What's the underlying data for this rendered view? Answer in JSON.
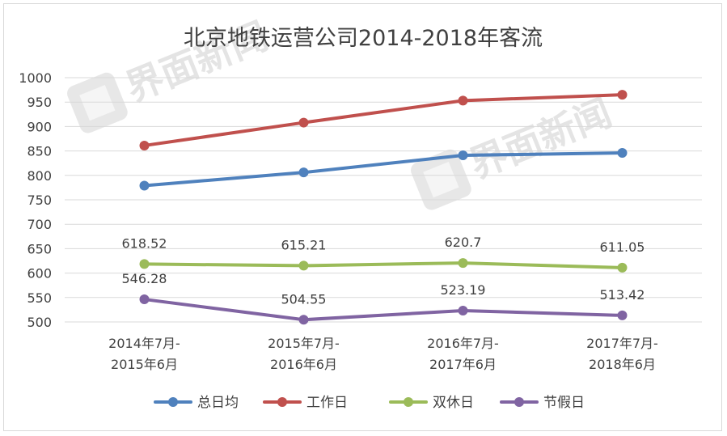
{
  "chart_data": {
    "type": "line",
    "title": "北京地铁运营公司2014-2018年客流",
    "categories": [
      [
        "2014年7月-",
        "2015年6月"
      ],
      [
        "2015年7月-",
        "2016年6月"
      ],
      [
        "2016年7月-",
        "2017年6月"
      ],
      [
        "2017年7月-",
        "2018年6月"
      ]
    ],
    "ylim": [
      500,
      1000
    ],
    "yticks": [
      1000,
      950,
      900,
      850,
      800,
      750,
      700,
      650,
      600,
      550,
      500
    ],
    "grid": true,
    "legend_position": "bottom",
    "series": [
      {
        "name": "总日均",
        "color": "#4f81bd",
        "values": [
          779,
          806,
          841,
          846
        ],
        "show_labels": false
      },
      {
        "name": "工作日",
        "color": "#c0504d",
        "values": [
          861,
          908,
          953,
          965
        ],
        "show_labels": false
      },
      {
        "name": "双休日",
        "color": "#9bbb59",
        "values": [
          618.52,
          615.21,
          620.7,
          611.05
        ],
        "show_labels": true
      },
      {
        "name": "节假日",
        "color": "#8064a2",
        "values": [
          546.28,
          504.55,
          523.19,
          513.42
        ],
        "show_labels": true
      }
    ]
  },
  "watermark": {
    "text": "界面新闻"
  }
}
